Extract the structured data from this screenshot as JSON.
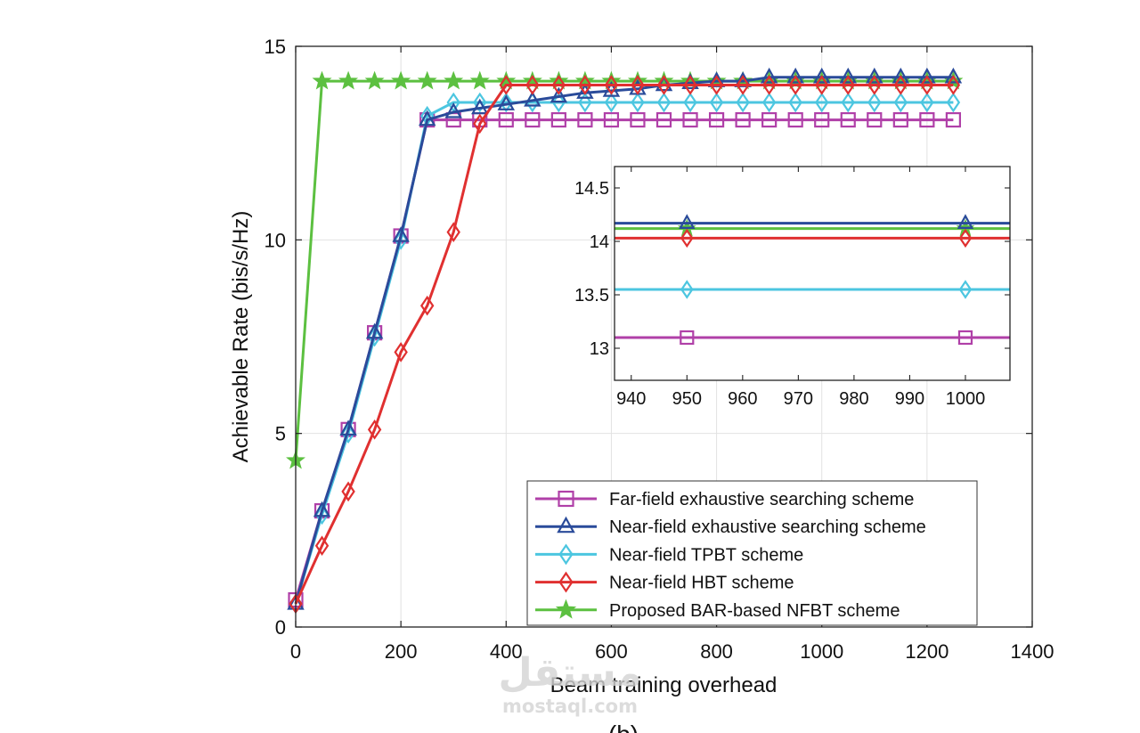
{
  "chart_data": [
    {
      "type": "line",
      "xlabel": "Beam training overhead",
      "ylabel": "Achievable Rate (bis/s/Hz)",
      "xlim": [
        0,
        1400
      ],
      "ylim": [
        0,
        15
      ],
      "xticks": [
        0,
        200,
        400,
        600,
        800,
        1000,
        1200,
        1400
      ],
      "yticks": [
        0,
        5,
        10,
        15
      ],
      "grid": true,
      "legend_position": "bottom-right",
      "series": [
        {
          "name": "Far-field exhaustive searching scheme",
          "color": "#b040a8",
          "marker": "square",
          "x": [
            0,
            50,
            100,
            150,
            200,
            250,
            300,
            350,
            400,
            450,
            500,
            550,
            600,
            650,
            700,
            750,
            800,
            850,
            900,
            950,
            1000,
            1050,
            1100,
            1150,
            1200,
            1250
          ],
          "y": [
            0.7,
            3.0,
            5.1,
            7.6,
            10.1,
            13.1,
            13.1,
            13.1,
            13.1,
            13.1,
            13.1,
            13.1,
            13.1,
            13.1,
            13.1,
            13.1,
            13.1,
            13.1,
            13.1,
            13.1,
            13.1,
            13.1,
            13.1,
            13.1,
            13.1,
            13.1
          ]
        },
        {
          "name": "Near-field exhaustive searching scheme",
          "color": "#2a4b9a",
          "marker": "triangle",
          "x": [
            0,
            50,
            100,
            150,
            200,
            250,
            300,
            350,
            400,
            450,
            500,
            550,
            600,
            650,
            700,
            750,
            800,
            850,
            900,
            950,
            1000,
            1050,
            1100,
            1150,
            1200,
            1250
          ],
          "y": [
            0.6,
            3.0,
            5.1,
            7.6,
            10.1,
            13.1,
            13.3,
            13.4,
            13.5,
            13.6,
            13.7,
            13.8,
            13.85,
            13.9,
            14.0,
            14.05,
            14.1,
            14.1,
            14.2,
            14.2,
            14.2,
            14.2,
            14.2,
            14.2,
            14.2,
            14.2
          ]
        },
        {
          "name": "Near-field TPBT scheme",
          "color": "#4cc6e0",
          "marker": "diamond",
          "x": [
            0,
            50,
            100,
            150,
            200,
            250,
            300,
            350,
            400,
            450,
            500,
            550,
            600,
            650,
            700,
            750,
            800,
            850,
            900,
            950,
            1000,
            1050,
            1100,
            1150,
            1200,
            1250
          ],
          "y": [
            0.6,
            2.9,
            5.0,
            7.5,
            10.0,
            13.2,
            13.55,
            13.55,
            13.55,
            13.55,
            13.55,
            13.55,
            13.55,
            13.55,
            13.55,
            13.55,
            13.55,
            13.55,
            13.55,
            13.55,
            13.55,
            13.55,
            13.55,
            13.55,
            13.55,
            13.55
          ]
        },
        {
          "name": "Near-field HBT scheme",
          "color": "#e03030",
          "marker": "diamond",
          "x": [
            0,
            50,
            100,
            150,
            200,
            250,
            300,
            350,
            400,
            450,
            500,
            550,
            600,
            650,
            700,
            750,
            800,
            850,
            900,
            950,
            1000,
            1050,
            1100,
            1150,
            1200,
            1250
          ],
          "y": [
            0.6,
            2.1,
            3.5,
            5.1,
            7.1,
            8.3,
            10.2,
            13.0,
            14.0,
            14.0,
            14.0,
            14.0,
            14.0,
            14.0,
            14.0,
            14.0,
            14.0,
            14.0,
            14.0,
            14.0,
            14.0,
            14.0,
            14.0,
            14.0,
            14.0,
            14.0
          ]
        },
        {
          "name": "Proposed BAR-based NFBT scheme",
          "color": "#5cc040",
          "marker": "star",
          "x": [
            0,
            50,
            100,
            150,
            200,
            250,
            300,
            350,
            400,
            450,
            500,
            550,
            600,
            650,
            700,
            750,
            800,
            850,
            900,
            950,
            1000,
            1050,
            1100,
            1150,
            1200,
            1250
          ],
          "y": [
            4.3,
            14.1,
            14.1,
            14.1,
            14.1,
            14.1,
            14.1,
            14.1,
            14.1,
            14.1,
            14.1,
            14.1,
            14.1,
            14.1,
            14.1,
            14.1,
            14.1,
            14.1,
            14.1,
            14.1,
            14.1,
            14.1,
            14.1,
            14.1,
            14.1,
            14.1
          ]
        }
      ]
    },
    {
      "type": "line",
      "xlim": [
        937,
        1008
      ],
      "ylim": [
        12.7,
        14.7
      ],
      "xticks": [
        940,
        950,
        960,
        970,
        980,
        990,
        1000
      ],
      "yticks": [
        13,
        13.5,
        14,
        14.5
      ],
      "ytick_labels": [
        "13",
        "13.5",
        "14",
        "14.5"
      ],
      "grid": false,
      "series": [
        {
          "color": "#b040a8",
          "marker": "square",
          "x": [
            950,
            1000
          ],
          "y": [
            13.1,
            13.1
          ]
        },
        {
          "color": "#2a4b9a",
          "marker": "triangle",
          "x": [
            950,
            1000
          ],
          "y": [
            14.17,
            14.17
          ]
        },
        {
          "color": "#4cc6e0",
          "marker": "diamond",
          "x": [
            950,
            1000
          ],
          "y": [
            13.55,
            13.55
          ]
        },
        {
          "color": "#e03030",
          "marker": "diamond",
          "x": [
            950,
            1000
          ],
          "y": [
            14.03,
            14.03
          ]
        },
        {
          "color": "#5cc040",
          "marker": "star",
          "x": [
            950,
            1000
          ],
          "y": [
            14.12,
            14.12
          ]
        }
      ]
    }
  ],
  "caption": "(b)",
  "watermark": {
    "arabic": "مستقل",
    "latin": "mostaql.com"
  }
}
